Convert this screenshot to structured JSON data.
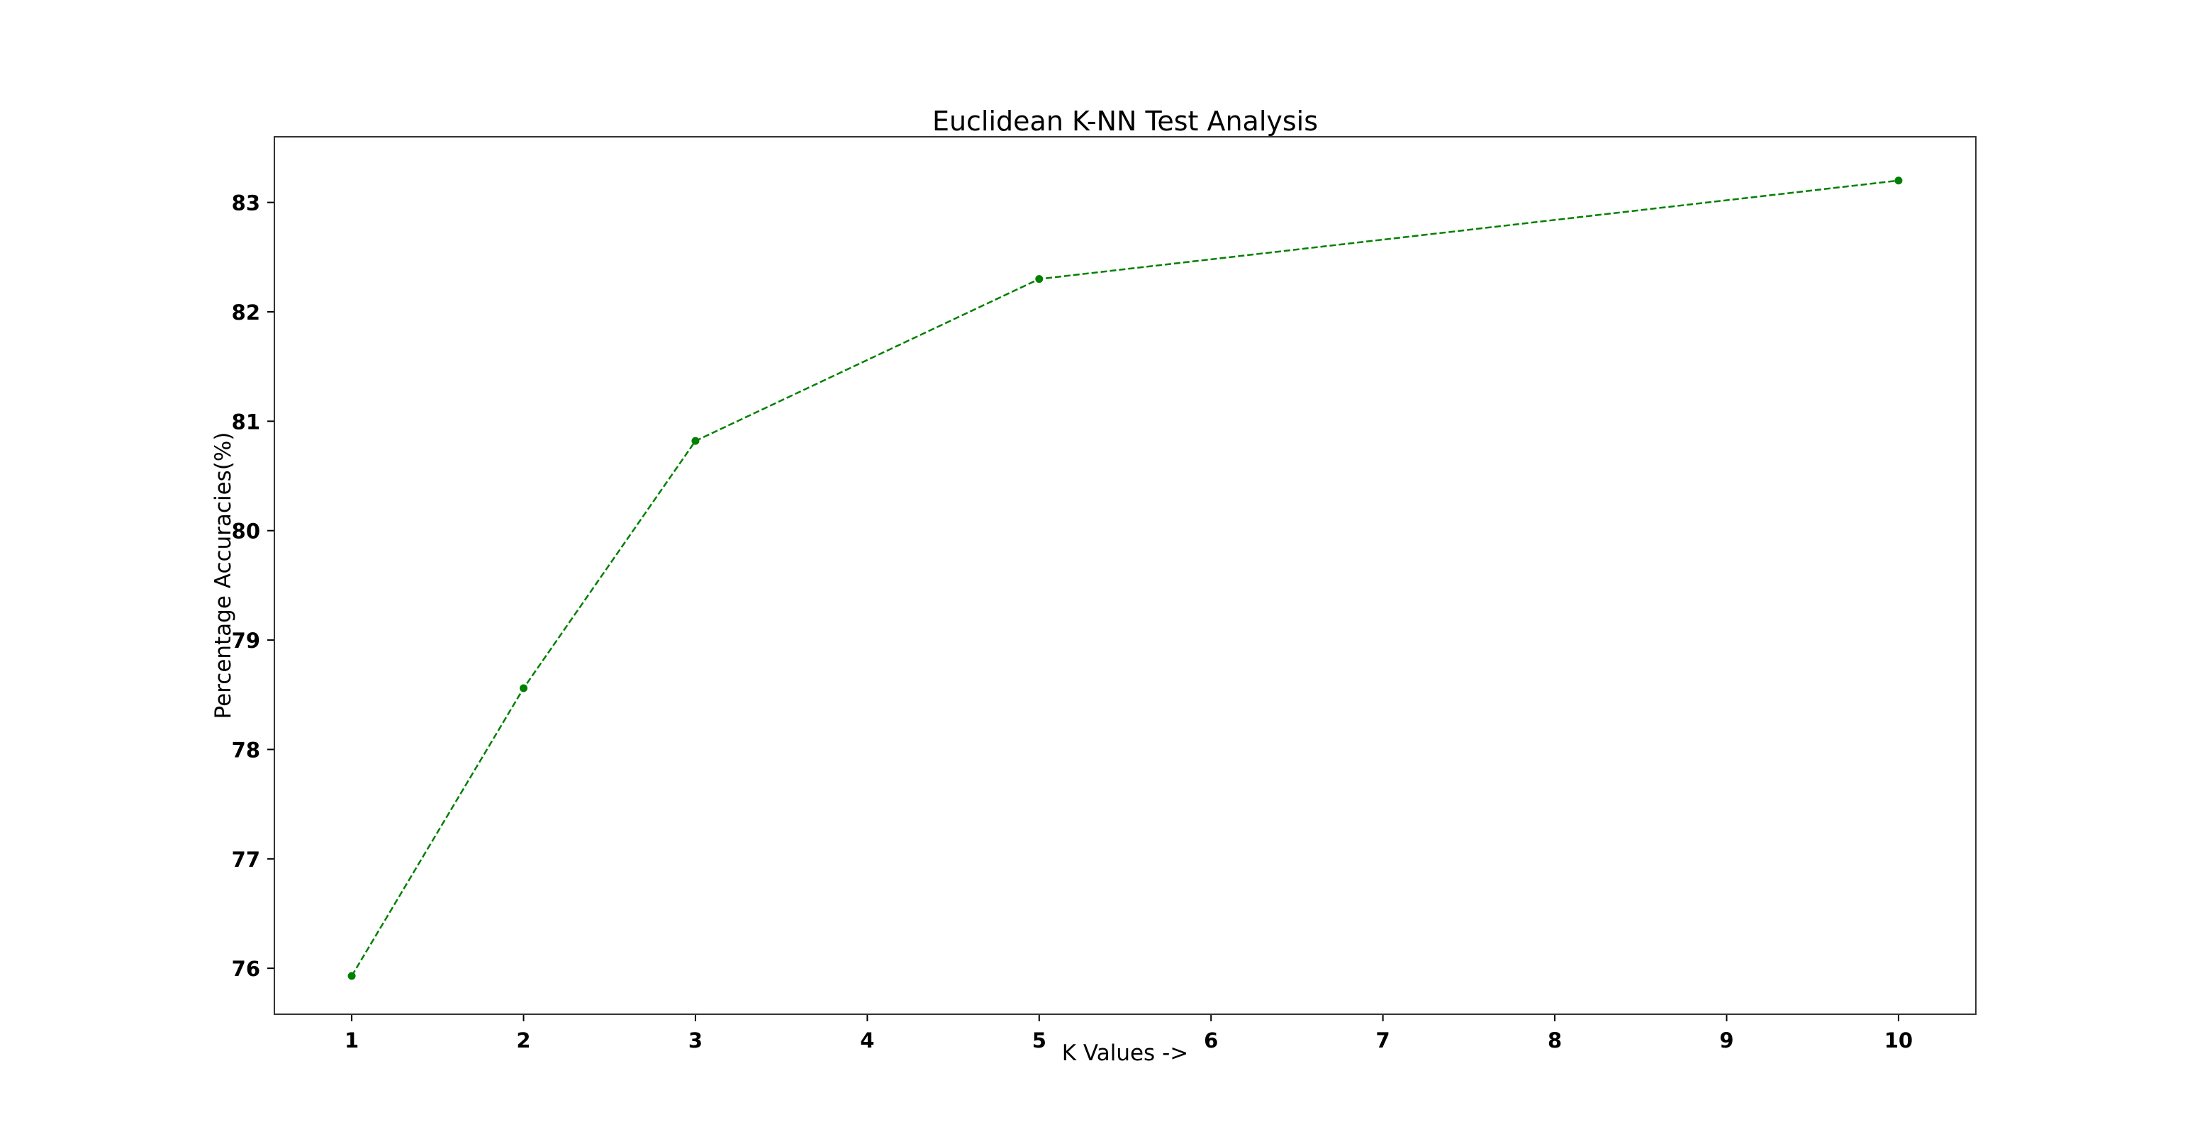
{
  "chart_data": {
    "type": "line",
    "title": "Euclidean K-NN Test Analysis",
    "xlabel": "K Values ->",
    "ylabel": "Percentage Accuracies(%)",
    "x": [
      1,
      2,
      3,
      5,
      10
    ],
    "series": [
      {
        "values": [
          75.93,
          78.56,
          80.82,
          82.3,
          83.2
        ]
      }
    ],
    "xlim": [
      0.55,
      10.45
    ],
    "ylim": [
      75.58,
      83.6
    ],
    "xticks": [
      "1",
      "2",
      "3",
      "4",
      "5",
      "6",
      "7",
      "8",
      "9",
      "10"
    ],
    "yticks": [
      "76",
      "77",
      "78",
      "79",
      "80",
      "81",
      "82",
      "83"
    ],
    "line_style": "dashed",
    "marker": "circle",
    "color": "#008000",
    "grid": false,
    "legend": "none"
  }
}
